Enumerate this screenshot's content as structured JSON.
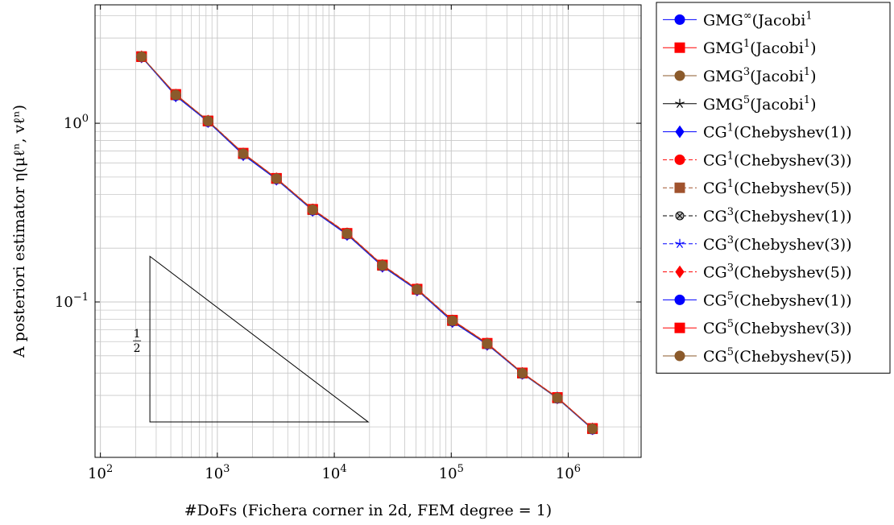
{
  "chart_data": {
    "type": "line",
    "xscale": "log",
    "yscale": "log",
    "grid": true,
    "legend_position": "outside-right",
    "xlabel": "#DoFs (Fichera corner in 2d, FEM degree = 1)",
    "ylabel": "A posteriori estimator η(μℓⁿ, vℓⁿ)",
    "xlim": [
      90,
      4200000
    ],
    "ylim": [
      0.0135,
      4.6
    ],
    "xticks": [
      {
        "base": "10",
        "exp": "2",
        "value": 100
      },
      {
        "base": "10",
        "exp": "3",
        "value": 1000
      },
      {
        "base": "10",
        "exp": "4",
        "value": 10000
      },
      {
        "base": "10",
        "exp": "5",
        "value": 100000
      },
      {
        "base": "10",
        "exp": "6",
        "value": 1000000
      }
    ],
    "yticks": [
      {
        "base": "10",
        "exp": "0",
        "value": 1
      },
      {
        "base": "10",
        "exp": "−1",
        "value": 0.1
      }
    ],
    "x": [
      225,
      441,
      833,
      1665,
      3201,
      6529,
      12865,
      25793,
      51073,
      102401,
      203009,
      405505,
      807425,
      1612161
    ],
    "series": [
      {
        "name": "GMG∞(Jacobi¹",
        "base": "GMG",
        "sup": "∞",
        "rest": "(Jacobi",
        "rsup": "1",
        "tail": "",
        "color": "#0000ff",
        "dash": "none",
        "marker": "circle",
        "values": [
          2.35,
          1.43,
          1.02,
          0.67,
          0.487,
          0.326,
          0.239,
          0.159,
          0.117,
          0.078,
          0.058,
          0.0397,
          0.0289,
          0.0194
        ]
      },
      {
        "name": "GMG¹(Jacobi¹)",
        "base": "GMG",
        "sup": "1",
        "rest": "(Jacobi",
        "rsup": "1",
        "tail": ")",
        "color": "#ff0000",
        "dash": "none",
        "marker": "square",
        "values": [
          2.36,
          1.45,
          1.03,
          0.68,
          0.492,
          0.33,
          0.242,
          0.161,
          0.118,
          0.079,
          0.0587,
          0.0401,
          0.0292,
          0.0196
        ]
      },
      {
        "name": "GMG³(Jacobi¹)",
        "base": "GMG",
        "sup": "3",
        "rest": "(Jacobi",
        "rsup": "1",
        "tail": ")",
        "color": "#8b5a2b",
        "dash": "none",
        "marker": "circle",
        "values": [
          2.36,
          1.44,
          1.03,
          0.675,
          0.49,
          0.328,
          0.241,
          0.16,
          0.1175,
          0.0785,
          0.0583,
          0.0399,
          0.029,
          0.0195
        ]
      },
      {
        "name": "GMG⁵(Jacobi¹)",
        "base": "GMG",
        "sup": "5",
        "rest": "(Jacobi",
        "rsup": "1",
        "tail": ")",
        "color": "#000000",
        "dash": "none",
        "marker": "star",
        "values": [
          2.36,
          1.44,
          1.03,
          0.675,
          0.49,
          0.328,
          0.241,
          0.16,
          0.1175,
          0.0785,
          0.0583,
          0.0399,
          0.029,
          0.0195
        ]
      },
      {
        "name": "CG¹(Chebyshev(1))",
        "base": "CG",
        "sup": "1",
        "rest": "(Chebyshev(1))",
        "rsup": "",
        "tail": "",
        "color": "#0000ff",
        "dash": "none",
        "marker": "diamond",
        "values": [
          2.35,
          1.42,
          1.02,
          0.665,
          0.485,
          0.325,
          0.238,
          0.158,
          0.1165,
          0.0775,
          0.0578,
          0.0398,
          0.0291,
          0.0195
        ]
      },
      {
        "name": "CG¹(Chebyshev(3))",
        "base": "CG",
        "sup": "1",
        "rest": "(Chebyshev(3))",
        "rsup": "",
        "tail": "",
        "color": "#ff0000",
        "dash": "5,3",
        "marker": "circle",
        "values": [
          2.36,
          1.45,
          1.035,
          0.68,
          0.493,
          0.331,
          0.243,
          0.1615,
          0.1185,
          0.0792,
          0.0588,
          0.0402,
          0.0292,
          0.0196
        ]
      },
      {
        "name": "CG¹(Chebyshev(5))",
        "base": "CG",
        "sup": "1",
        "rest": "(Chebyshev(5))",
        "rsup": "",
        "tail": "",
        "color": "#a0522d",
        "dash": "5,3",
        "marker": "square",
        "values": [
          2.36,
          1.44,
          1.03,
          0.675,
          0.49,
          0.328,
          0.241,
          0.16,
          0.1175,
          0.0785,
          0.0583,
          0.0399,
          0.029,
          0.0195
        ]
      },
      {
        "name": "CG³(Chebyshev(1))",
        "base": "CG",
        "sup": "3",
        "rest": "(Chebyshev(1))",
        "rsup": "",
        "tail": "",
        "color": "#000000",
        "dash": "5,3",
        "marker": "otimes",
        "values": [
          2.36,
          1.44,
          1.03,
          0.675,
          0.49,
          0.328,
          0.241,
          0.16,
          0.1175,
          0.0785,
          0.0583,
          0.0399,
          0.029,
          0.0195
        ]
      },
      {
        "name": "CG³(Chebyshev(3))",
        "base": "CG",
        "sup": "3",
        "rest": "(Chebyshev(3))",
        "rsup": "",
        "tail": "",
        "color": "#0000ff",
        "dash": "5,3",
        "marker": "star",
        "values": [
          2.35,
          1.43,
          1.025,
          0.672,
          0.488,
          0.327,
          0.24,
          0.1595,
          0.117,
          0.078,
          0.058,
          0.0398,
          0.029,
          0.0195
        ]
      },
      {
        "name": "CG³(Chebyshev(5))",
        "base": "CG",
        "sup": "3",
        "rest": "(Chebyshev(5))",
        "rsup": "",
        "tail": "",
        "color": "#ff0000",
        "dash": "5,3",
        "marker": "diamond",
        "values": [
          2.36,
          1.44,
          1.03,
          0.675,
          0.49,
          0.328,
          0.241,
          0.16,
          0.1175,
          0.0785,
          0.0583,
          0.0399,
          0.029,
          0.0195
        ]
      },
      {
        "name": "CG⁵(Chebyshev(1))",
        "base": "CG",
        "sup": "5",
        "rest": "(Chebyshev(1))",
        "rsup": "",
        "tail": "",
        "color": "#0000ff",
        "dash": "none",
        "marker": "circle",
        "values": [
          2.35,
          1.43,
          1.02,
          0.67,
          0.487,
          0.326,
          0.239,
          0.159,
          0.117,
          0.078,
          0.058,
          0.0397,
          0.0289,
          0.0194
        ]
      },
      {
        "name": "CG⁵(Chebyshev(3))",
        "base": "CG",
        "sup": "5",
        "rest": "(Chebyshev(3))",
        "rsup": "",
        "tail": "",
        "color": "#ff0000",
        "dash": "none",
        "marker": "square",
        "values": [
          2.36,
          1.45,
          1.03,
          0.68,
          0.492,
          0.33,
          0.242,
          0.161,
          0.118,
          0.079,
          0.0587,
          0.0401,
          0.0292,
          0.0196
        ]
      },
      {
        "name": "CG⁵(Chebyshev(5))",
        "base": "CG",
        "sup": "5",
        "rest": "(Chebyshev(5))",
        "rsup": "",
        "tail": "",
        "color": "#8b5a2b",
        "dash": "none",
        "marker": "circle",
        "values": [
          2.36,
          1.44,
          1.03,
          0.675,
          0.49,
          0.328,
          0.241,
          0.16,
          0.1175,
          0.0785,
          0.0583,
          0.0399,
          0.029,
          0.0195
        ]
      }
    ],
    "annotations": [
      {
        "type": "slope-triangle",
        "label_num": "1",
        "label_den": "2",
        "x_start": 265,
        "x_end": 19500,
        "y_top": 0.18,
        "y_bottom": 0.0213
      }
    ]
  }
}
